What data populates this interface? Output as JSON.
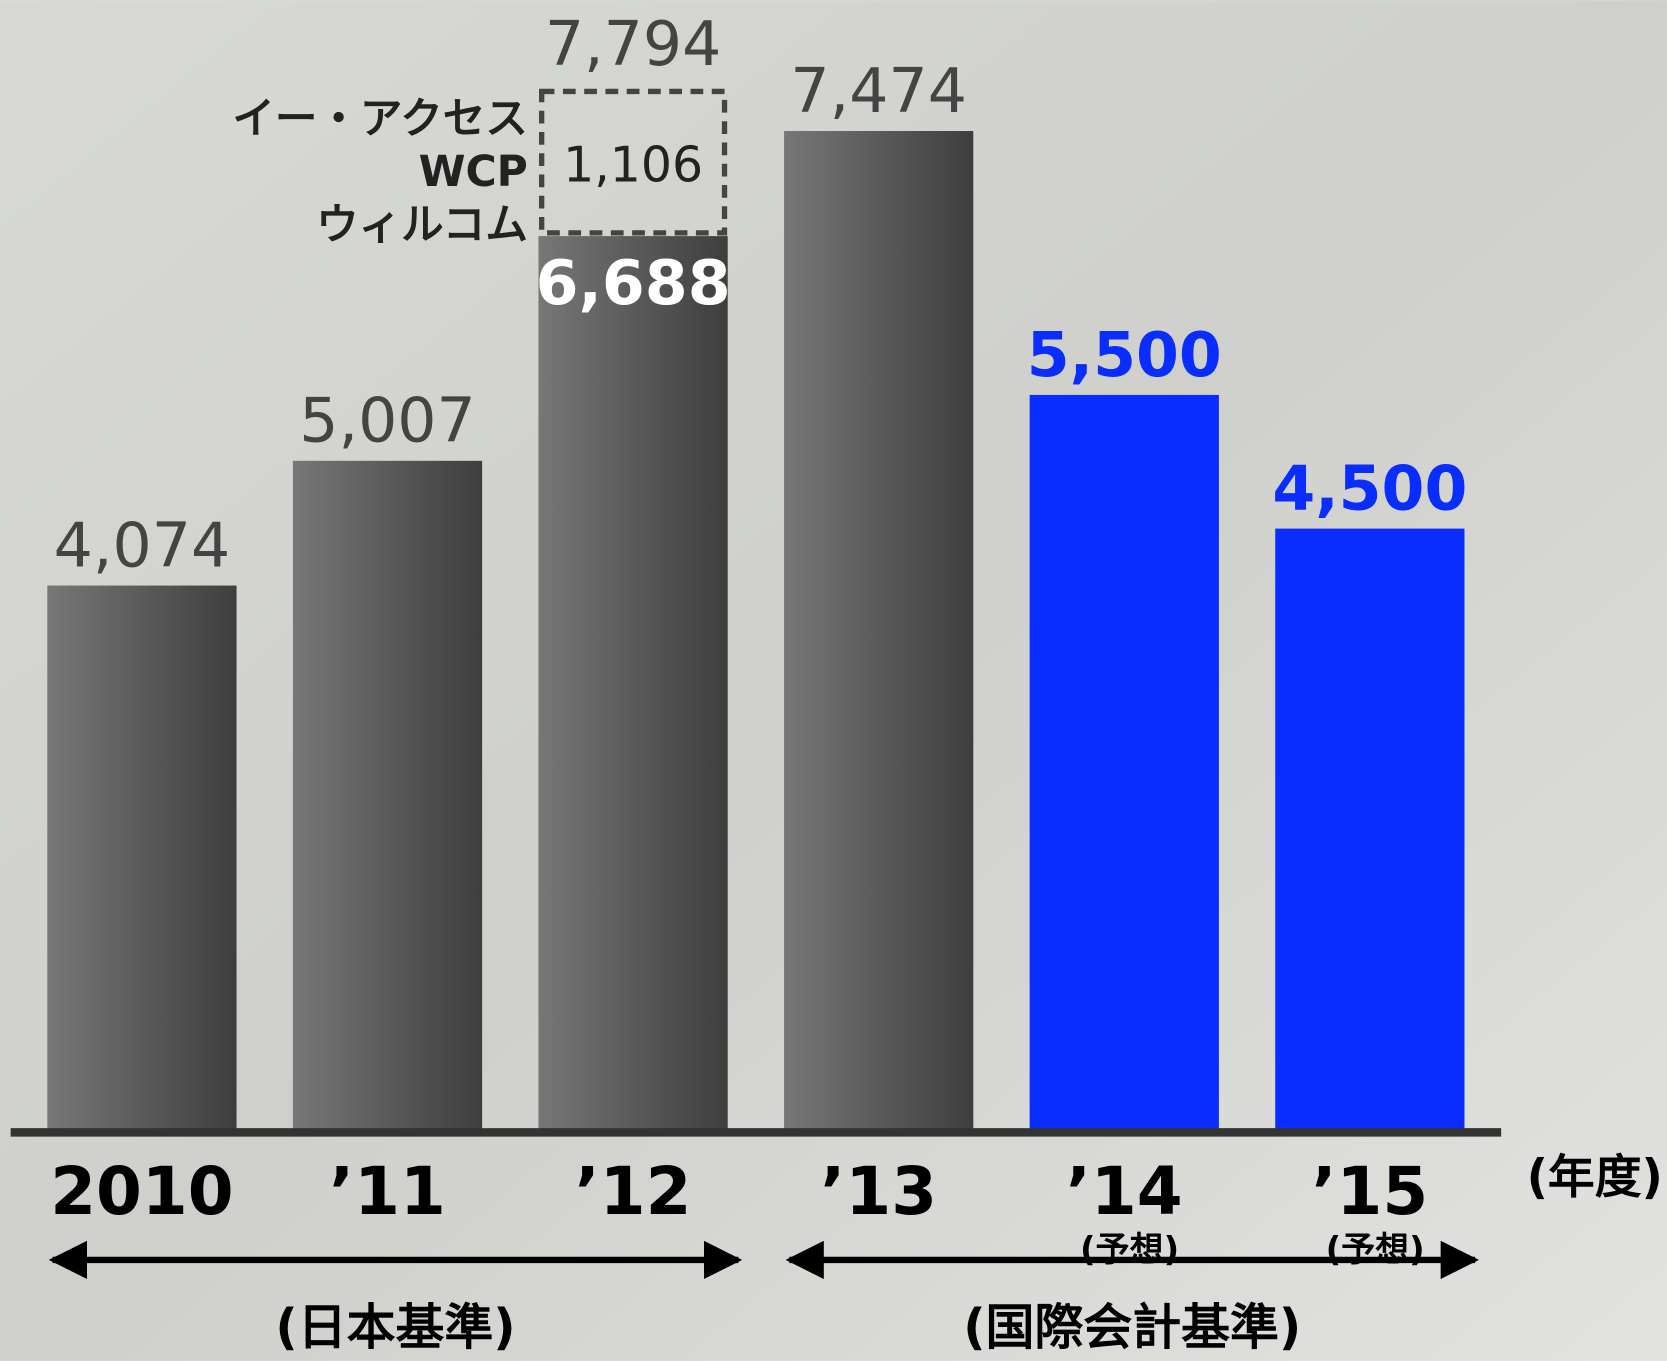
{
  "chart_data": {
    "type": "bar",
    "categories": [
      "2010",
      "’11",
      "’12",
      "’13",
      "’14",
      "’15"
    ],
    "sublabels": [
      null,
      null,
      null,
      null,
      "(予想)",
      "(予想)"
    ],
    "x_unit": "(年度)",
    "series": [
      {
        "values": [
          4074,
          5007,
          6688,
          7474,
          5500,
          4500
        ],
        "value_labels": [
          "4,074",
          "5,007",
          "6,688",
          "7,474",
          "5,500",
          "4,500"
        ],
        "colors": [
          "#555555",
          "#555555",
          "#555555",
          "#555555",
          "#0a2dff",
          "#0a2dff"
        ],
        "label_colors": [
          "#444444",
          "#444444",
          "#ffffff",
          "#444444",
          "#0a2dff",
          "#0a2dff"
        ]
      },
      {
        "labels": [
          "イー・アクセス",
          "WCP",
          "ウィルコム"
        ],
        "values": [
          null,
          null,
          1106,
          null,
          null,
          null
        ],
        "value_labels": [
          null,
          null,
          "1,106",
          null,
          null,
          null
        ]
      }
    ],
    "totals": [
      {
        "index": 2,
        "value": 7794,
        "label": "7,794"
      }
    ],
    "periods": [
      {
        "label": "(日本基準)",
        "from": 0,
        "to": 2
      },
      {
        "label": "(国際会計基準)",
        "from": 3,
        "to": 5
      }
    ],
    "ylim": [
      0,
      8000
    ]
  }
}
